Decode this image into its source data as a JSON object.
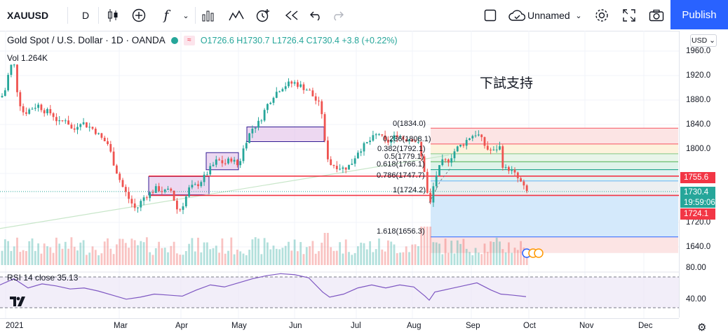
{
  "toolbar": {
    "symbol": "XAUUSD",
    "interval": "D",
    "fx_label": "f",
    "layout_name": "Unnamed",
    "publish_label": "Publish",
    "icons": [
      "candles-icon",
      "add-indicator-icon",
      "function-icon",
      "chevron-down-icon",
      "bar-chart-icon",
      "templates-icon",
      "alert-icon",
      "replay-icon",
      "undo-icon",
      "redo-icon",
      "fullscreen-square-icon",
      "cloud-icon",
      "gear-icon",
      "expand-icon",
      "camera-icon"
    ]
  },
  "legend": {
    "title": "Gold Spot / U.S. Dollar · 1D · OANDA",
    "ohlc": "O1726.6 H1730.7 L1726.4 C1730.4 +3.8 (+0.22%)",
    "volume": "Vol  1.264K",
    "rsi": "RSI 14 close   35.13"
  },
  "annotation": "下試支持",
  "price_axis": {
    "currency": "USD",
    "ticks": [
      "1960.0",
      "1920.0",
      "1880.0",
      "1840.0",
      "1800.0",
      "1760.0",
      "1720.0",
      "1680.0",
      "1640.0"
    ],
    "rsi_ticks": [
      "80.00",
      "40.00"
    ],
    "tag_resistance": "1755.6",
    "tag_last": "1730.4",
    "tag_countdown": "19:59:06",
    "tag_support": "1724.1"
  },
  "time_axis": [
    "2021",
    "Mar",
    "Apr",
    "May",
    "Jun",
    "Jul",
    "Aug",
    "Sep",
    "Oct",
    "Nov",
    "Dec"
  ],
  "fib_levels": [
    {
      "label": "0(1834.0)"
    },
    {
      "label": "0.236(1808.1)"
    },
    {
      "label": "0.382(1792.1)"
    },
    {
      "label": "0.5(1779.1)"
    },
    {
      "label": "0.618(1766.1)"
    },
    {
      "label": "0.786(1747.7)"
    },
    {
      "label": "1(1724.2)"
    },
    {
      "label": "1.618(1656.3)"
    }
  ],
  "colors": {
    "up": "#26a69a",
    "down": "#ef5350",
    "resistance_line": "#f23645",
    "publish": "#2962ff",
    "zone_fill": "#e1bee7"
  },
  "chart_data": {
    "type": "candlestick",
    "ylim": [
      1630,
      1975
    ],
    "ticks": [
      1960,
      1920,
      1880,
      1840,
      1800,
      1760,
      1720,
      1680,
      1640
    ],
    "lines": [
      1755.6,
      1724.1
    ],
    "close_path": [
      [
        0,
        1880
      ],
      [
        8,
        1898
      ],
      [
        14,
        1935
      ],
      [
        20,
        1938
      ],
      [
        26,
        1882
      ],
      [
        34,
        1858
      ],
      [
        44,
        1866
      ],
      [
        54,
        1872
      ],
      [
        64,
        1862
      ],
      [
        74,
        1858
      ],
      [
        84,
        1842
      ],
      [
        94,
        1850
      ],
      [
        104,
        1828
      ],
      [
        114,
        1846
      ],
      [
        124,
        1838
      ],
      [
        134,
        1832
      ],
      [
        144,
        1818
      ],
      [
        154,
        1808
      ],
      [
        164,
        1770
      ],
      [
        174,
        1740
      ],
      [
        184,
        1718
      ],
      [
        194,
        1700
      ],
      [
        204,
        1720
      ],
      [
        214,
        1728
      ],
      [
        224,
        1736
      ],
      [
        234,
        1730
      ],
      [
        244,
        1732
      ],
      [
        254,
        1696
      ],
      [
        262,
        1712
      ],
      [
        270,
        1736
      ],
      [
        280,
        1740
      ],
      [
        290,
        1752
      ],
      [
        300,
        1768
      ],
      [
        310,
        1782
      ],
      [
        320,
        1776
      ],
      [
        330,
        1784
      ],
      [
        340,
        1772
      ],
      [
        350,
        1812
      ],
      [
        360,
        1834
      ],
      [
        370,
        1844
      ],
      [
        380,
        1870
      ],
      [
        390,
        1888
      ],
      [
        400,
        1900
      ],
      [
        410,
        1906
      ],
      [
        420,
        1908
      ],
      [
        430,
        1902
      ],
      [
        440,
        1896
      ],
      [
        450,
        1880
      ],
      [
        458,
        1868
      ],
      [
        464,
        1800
      ],
      [
        470,
        1776
      ],
      [
        480,
        1772
      ],
      [
        490,
        1768
      ],
      [
        500,
        1774
      ],
      [
        510,
        1796
      ],
      [
        520,
        1806
      ],
      [
        530,
        1816
      ],
      [
        540,
        1826
      ],
      [
        548,
        1812
      ],
      [
        556,
        1812
      ],
      [
        566,
        1824
      ],
      [
        576,
        1816
      ],
      [
        586,
        1818
      ],
      [
        596,
        1810
      ],
      [
        606,
        1760
      ],
      [
        612,
        1700
      ],
      [
        620,
        1752
      ],
      [
        630,
        1778
      ],
      [
        640,
        1782
      ],
      [
        650,
        1800
      ],
      [
        660,
        1808
      ],
      [
        670,
        1820
      ],
      [
        680,
        1826
      ],
      [
        686,
        1816
      ],
      [
        694,
        1800
      ],
      [
        704,
        1796
      ],
      [
        712,
        1806
      ],
      [
        718,
        1766
      ],
      [
        726,
        1768
      ],
      [
        734,
        1758
      ],
      [
        742,
        1746
      ],
      [
        750,
        1730
      ]
    ],
    "rsi_path": [
      [
        0,
        58
      ],
      [
        20,
        70
      ],
      [
        40,
        52
      ],
      [
        60,
        60
      ],
      [
        80,
        56
      ],
      [
        100,
        50
      ],
      [
        120,
        52
      ],
      [
        140,
        46
      ],
      [
        160,
        38
      ],
      [
        180,
        30
      ],
      [
        200,
        34
      ],
      [
        220,
        40
      ],
      [
        240,
        38
      ],
      [
        260,
        36
      ],
      [
        280,
        48
      ],
      [
        300,
        58
      ],
      [
        320,
        54
      ],
      [
        340,
        62
      ],
      [
        360,
        70
      ],
      [
        380,
        76
      ],
      [
        400,
        80
      ],
      [
        420,
        78
      ],
      [
        440,
        72
      ],
      [
        460,
        44
      ],
      [
        470,
        34
      ],
      [
        490,
        40
      ],
      [
        510,
        52
      ],
      [
        530,
        58
      ],
      [
        550,
        52
      ],
      [
        570,
        58
      ],
      [
        590,
        54
      ],
      [
        606,
        36
      ],
      [
        612,
        28
      ],
      [
        620,
        44
      ],
      [
        640,
        50
      ],
      [
        660,
        56
      ],
      [
        680,
        62
      ],
      [
        700,
        48
      ],
      [
        714,
        40
      ],
      [
        730,
        38
      ],
      [
        750,
        35
      ]
    ]
  }
}
